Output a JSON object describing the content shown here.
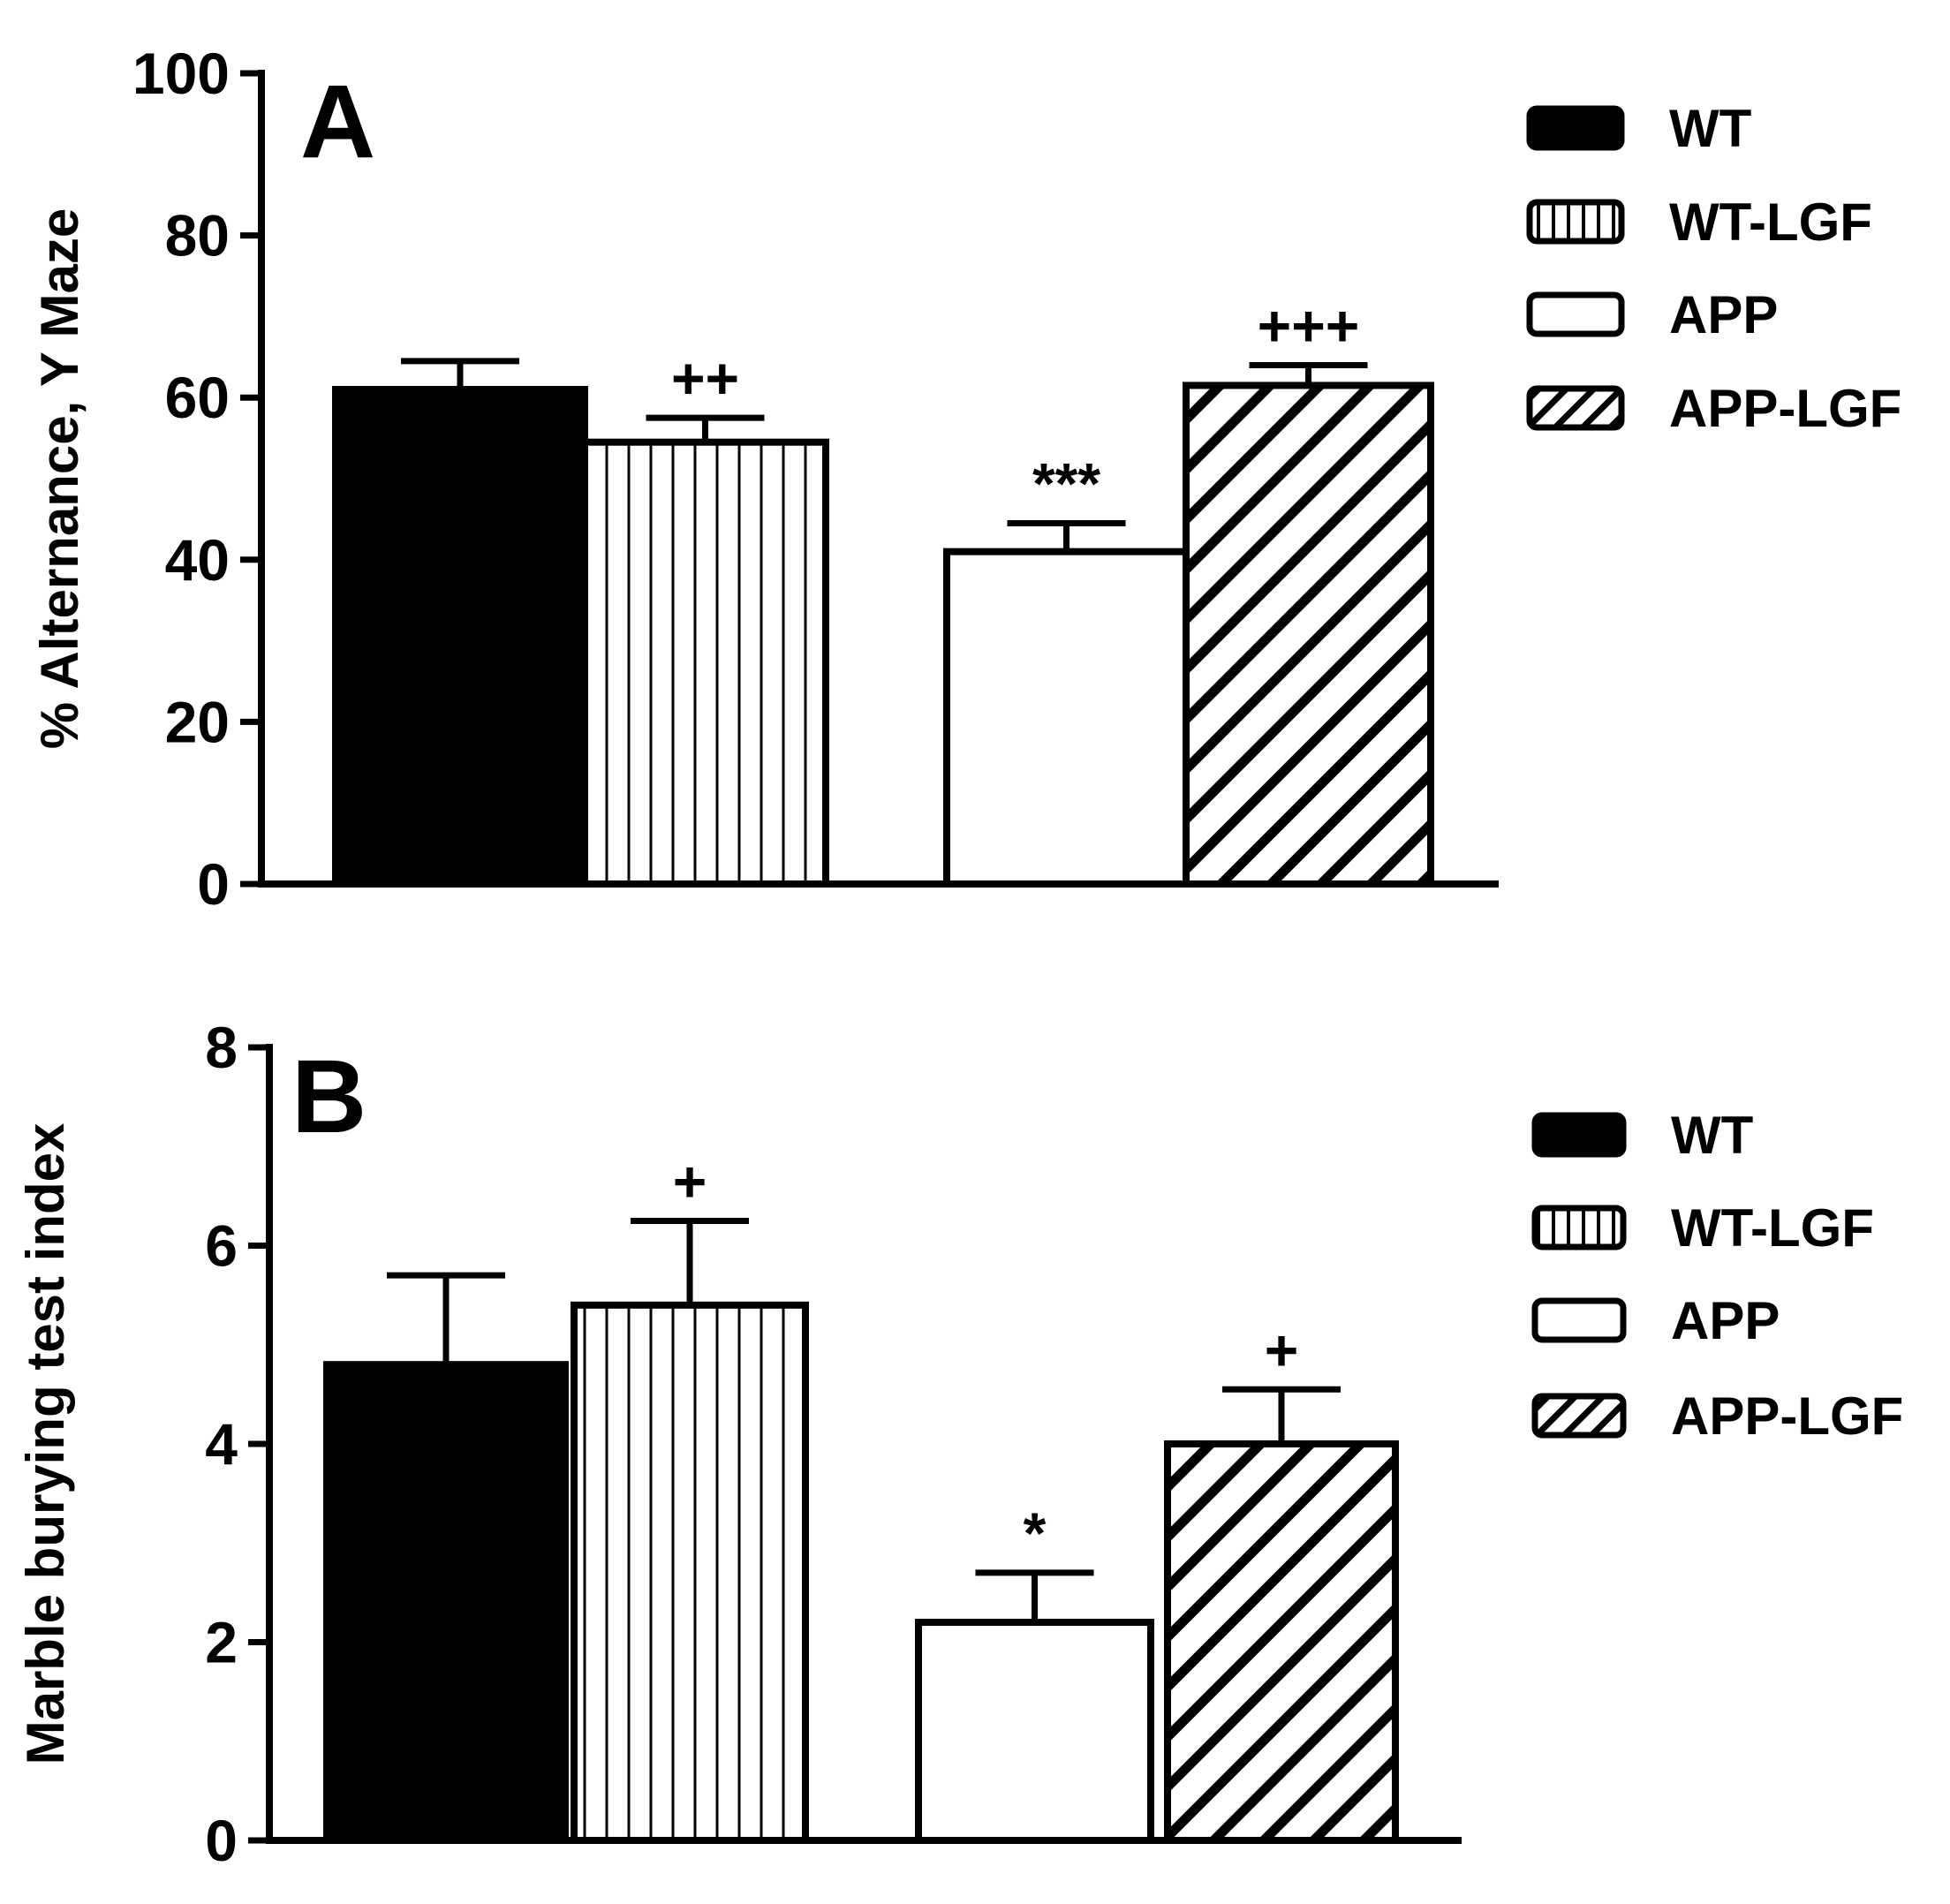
{
  "chart_data": [
    {
      "type": "bar",
      "panel_label": "A",
      "ylabel": "% Alternance, Y Maze",
      "ylim": [
        0,
        100
      ],
      "yticks": [
        "0",
        "20",
        "40",
        "60",
        "80",
        "100"
      ],
      "categories": [
        "WT",
        "WT-LGF",
        "APP",
        "APP-LGF"
      ],
      "values": [
        61,
        54.5,
        41,
        61.5
      ],
      "errors": [
        3.5,
        3,
        3.5,
        2.5
      ],
      "significance": [
        "",
        "++",
        "***",
        "+++"
      ],
      "legend": {
        "placement": "right-top",
        "entries": [
          {
            "label": "WT",
            "pattern": "solid"
          },
          {
            "label": "WT-LGF",
            "pattern": "vertical"
          },
          {
            "label": "APP",
            "pattern": "open"
          },
          {
            "label": "APP-LGF",
            "pattern": "diagonal"
          }
        ]
      },
      "grid": false
    },
    {
      "type": "bar",
      "panel_label": "B",
      "ylabel": "Marble burying test index",
      "ylim": [
        0,
        8
      ],
      "yticks": [
        "0",
        "2",
        "4",
        "6",
        "8"
      ],
      "categories": [
        "WT",
        "WT-LGF",
        "APP",
        "APP-LGF"
      ],
      "values": [
        4.8,
        5.4,
        2.2,
        4.0
      ],
      "errors": [
        0.9,
        0.85,
        0.5,
        0.55
      ],
      "significance": [
        "",
        "+",
        "*",
        "+"
      ],
      "legend": {
        "placement": "right-top",
        "entries": [
          {
            "label": "WT",
            "pattern": "solid"
          },
          {
            "label": "WT-LGF",
            "pattern": "vertical"
          },
          {
            "label": "APP",
            "pattern": "open"
          },
          {
            "label": "APP-LGF",
            "pattern": "diagonal"
          }
        ]
      },
      "grid": false
    }
  ]
}
